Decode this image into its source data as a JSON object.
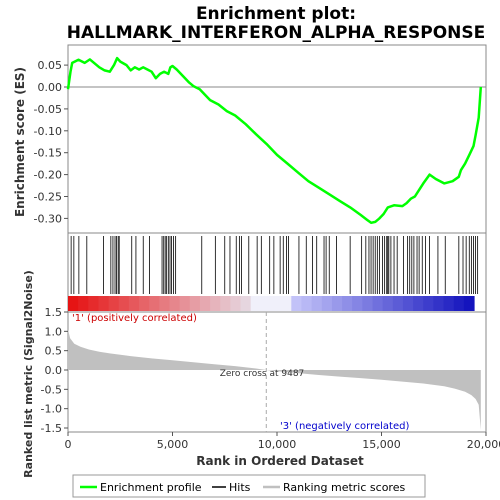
{
  "chart_data": [
    {
      "panel": "enrichment",
      "type": "line",
      "title": "Enrichment plot:\nHALLMARK_INTERFERON_ALPHA_RESPONSE",
      "title_lines": [
        "Enrichment plot:",
        "HALLMARK_INTERFERON_ALPHA_RESPONSE"
      ],
      "ylabel": "Enrichment score (ES)",
      "ylim": [
        -0.335,
        0.075
      ],
      "yticks": [
        0.05,
        0.0,
        -0.05,
        -0.1,
        -0.15,
        -0.2,
        -0.25,
        -0.3
      ],
      "ytick_labels": [
        "0.05",
        "0.00",
        "-0.05",
        "-0.10",
        "-0.15",
        "-0.20",
        "-0.25",
        "-0.30"
      ],
      "x": [
        0,
        120,
        200,
        500,
        800,
        1050,
        1500,
        1750,
        2000,
        2200,
        2350,
        2500,
        2800,
        3000,
        3200,
        3400,
        3600,
        3800,
        4000,
        4200,
        4400,
        4600,
        4800,
        4900,
        5000,
        5200,
        5500,
        5800,
        6000,
        6300,
        6800,
        7200,
        7600,
        8000,
        8500,
        9000,
        9500,
        10000,
        10500,
        11000,
        11500,
        12000,
        12500,
        13000,
        13500,
        14000,
        14300,
        14500,
        14700,
        14900,
        15100,
        15300,
        15600,
        16000,
        16200,
        16400,
        16600,
        16800,
        17000,
        17300,
        17600,
        18000,
        18400,
        18700,
        18800,
        19000,
        19200,
        19400,
        19500,
        19650,
        19750
      ],
      "y": [
        -0.005,
        0.035,
        0.055,
        0.062,
        0.055,
        0.063,
        0.045,
        0.038,
        0.035,
        0.05,
        0.066,
        0.058,
        0.05,
        0.038,
        0.045,
        0.04,
        0.045,
        0.04,
        0.035,
        0.02,
        0.03,
        0.035,
        0.03,
        0.045,
        0.048,
        0.04,
        0.025,
        0.01,
        0.002,
        -0.005,
        -0.03,
        -0.04,
        -0.055,
        -0.065,
        -0.085,
        -0.108,
        -0.13,
        -0.155,
        -0.175,
        -0.195,
        -0.215,
        -0.23,
        -0.245,
        -0.26,
        -0.275,
        -0.292,
        -0.303,
        -0.31,
        -0.308,
        -0.3,
        -0.29,
        -0.275,
        -0.27,
        -0.272,
        -0.265,
        -0.255,
        -0.25,
        -0.235,
        -0.22,
        -0.2,
        -0.21,
        -0.22,
        -0.215,
        -0.205,
        -0.19,
        -0.175,
        -0.155,
        -0.135,
        -0.11,
        -0.07,
        0.0
      ],
      "series": [
        {
          "name": "Enrichment profile",
          "color": "#00ff00"
        }
      ]
    },
    {
      "panel": "hits",
      "type": "scatter",
      "series": [
        {
          "name": "Hits",
          "color": "#000000"
        }
      ],
      "hit_positions": [
        150,
        280,
        520,
        900,
        1700,
        2050,
        2150,
        2250,
        2320,
        2400,
        2450,
        3050,
        3250,
        3600,
        3900,
        4500,
        4580,
        4650,
        4720,
        4800,
        4880,
        4950,
        5050,
        5150,
        6400,
        7050,
        7500,
        7750,
        8050,
        8200,
        8300,
        8650,
        9050,
        9250,
        9650,
        9850,
        10150,
        10300,
        10450,
        10550,
        11050,
        11400,
        11700,
        11900,
        12250,
        12350,
        12500,
        12850,
        13500,
        14050,
        14250,
        14400,
        14500,
        14600,
        14700,
        14800,
        14900,
        15050,
        15150,
        15250,
        15300,
        15350,
        15450,
        15600,
        15750,
        16050,
        16250,
        16350,
        16450,
        16550,
        16700,
        16800,
        16950,
        17100,
        17300,
        17700,
        18050,
        18700,
        18900,
        19050,
        19200,
        19300,
        19400,
        19500,
        19600
      ]
    },
    {
      "panel": "ranking",
      "type": "area",
      "xlabel": "Rank in Ordered Dataset",
      "ylabel": "Ranked list metric (Signal2Noise)",
      "xlim": [
        0,
        20000
      ],
      "xticks": [
        0,
        5000,
        10000,
        15000,
        20000
      ],
      "xtick_labels": [
        "0",
        "5,000",
        "10,000",
        "15,000",
        "20,000"
      ],
      "ylim": [
        -1.65,
        1.6
      ],
      "yticks": [
        1.5,
        1.0,
        0.5,
        0.0,
        -0.5,
        -1.0,
        -1.5
      ],
      "ytick_labels": [
        "1.5",
        "1.0",
        "0.5",
        "0.0",
        "-0.5",
        "-1.0",
        "-1.5"
      ],
      "x": [
        0,
        100,
        300,
        600,
        1000,
        1500,
        2000,
        3000,
        4000,
        5000,
        6000,
        7000,
        8000,
        9000,
        9487,
        10000,
        11000,
        12000,
        13000,
        14000,
        15000,
        16000,
        17000,
        18000,
        18500,
        19000,
        19300,
        19500,
        19650,
        19750
      ],
      "y": [
        1.05,
        0.82,
        0.68,
        0.6,
        0.53,
        0.47,
        0.43,
        0.36,
        0.3,
        0.25,
        0.2,
        0.15,
        0.1,
        0.04,
        0.0,
        -0.03,
        -0.08,
        -0.13,
        -0.17,
        -0.21,
        -0.25,
        -0.3,
        -0.35,
        -0.42,
        -0.48,
        -0.56,
        -0.65,
        -0.75,
        -0.9,
        -1.55
      ],
      "series": [
        {
          "name": "Ranking metric scores",
          "color": "#c0c0c0"
        }
      ],
      "annotations": [
        "Zero cross at 9487",
        "'1' (positively correlated)",
        "'3' (negatively correlated)"
      ],
      "zero_cross": 9487
    }
  ],
  "labels": {
    "pos_corr": "'1' (positively correlated)",
    "neg_corr": "'3' (negatively correlated)",
    "zero_cross": "Zero cross at 9487"
  },
  "legend": {
    "items": [
      {
        "label": "Enrichment profile",
        "color": "#00ff00"
      },
      {
        "label": "Hits",
        "color": "#000000"
      },
      {
        "label": "Ranking metric scores",
        "color": "#c0c0c0"
      }
    ]
  },
  "colors": {
    "es_line": "#00ff00",
    "ranking_fill": "#c0c0c0",
    "positive_band": "#ff0000",
    "negative_band": "#0000ff"
  }
}
